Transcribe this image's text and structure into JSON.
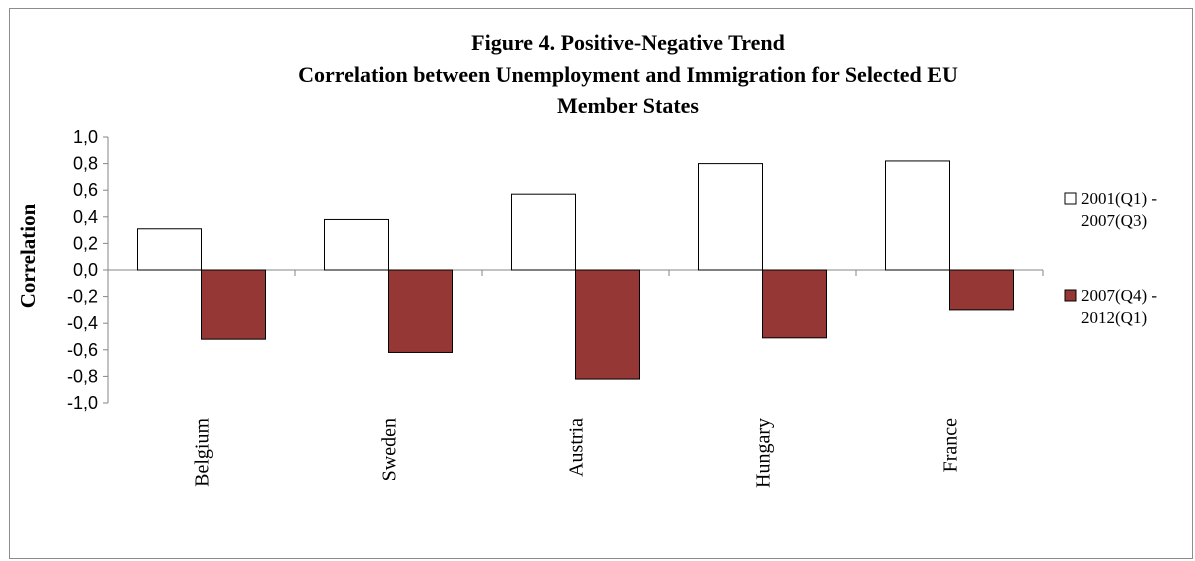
{
  "chart_data": {
    "type": "bar",
    "title_lines": [
      "Figure 4. Positive-Negative Trend",
      "Correlation between Unemployment and Immigration for Selected EU",
      "Member States"
    ],
    "xlabel": "",
    "ylabel": "Correlation",
    "ylim": [
      -1.0,
      1.0
    ],
    "yticks": [
      "1,0",
      "0,8",
      "0,6",
      "0,4",
      "0,2",
      "0,0",
      "-0,2",
      "-0,4",
      "-0,6",
      "-0,8",
      "-1,0"
    ],
    "categories": [
      "Belgium",
      "Sweden",
      "Austria",
      "Hungary",
      "France"
    ],
    "series": [
      {
        "name_lines": [
          "2001(Q1) -",
          "2007(Q3)"
        ],
        "color": "#ffffff",
        "stroke": "#000000",
        "values": [
          0.31,
          0.38,
          0.57,
          0.8,
          0.82
        ]
      },
      {
        "name_lines": [
          "2007(Q4) -",
          "2012(Q1)"
        ],
        "color": "#953735",
        "stroke": "#000000",
        "values": [
          -0.52,
          -0.62,
          -0.82,
          -0.51,
          -0.3
        ]
      }
    ],
    "grid": false,
    "legend_position": "right"
  }
}
